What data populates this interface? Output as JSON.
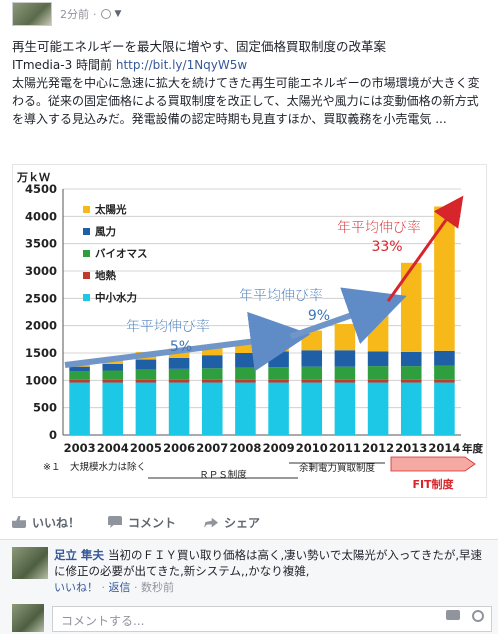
{
  "post": {
    "time": "2分前",
    "title": "再生可能エネルギーを最大限に増やす、固定価格買取制度の改革案",
    "source_name": "ITmedia-3 時間前",
    "source_link": "http://bit.ly/1NqyW5w",
    "description": "太陽光発電を中心に急速に拡大を続けてきた再生可能エネルギーの市場環境が大きく変わる。従来の固定価格による買取制度を改正して、太陽光や風力には変動価格の新方式を導入する見込みだ。発電設備の認定時期も見直すほか、買取義務を小売電気 ..."
  },
  "actions": {
    "like": "いいね！",
    "comment": "コメント",
    "share": "シェア"
  },
  "comment": {
    "author": "足立 隼夫",
    "text": "当初のＦＩＹ買い取り価格は高く,凄い勢いで太陽光が入ってきたが,早速に修正の必要が出てきた,新システム,,かなり複雑,",
    "like": "いいね！",
    "reply": "返信",
    "time": "数秒前"
  },
  "composer": {
    "placeholder": "コメントする..."
  },
  "chart_data": {
    "type": "bar",
    "stacked": true,
    "ylabel": "万ｋＷ",
    "ylim": [
      0,
      4500
    ],
    "yticks": [
      0,
      500,
      1000,
      1500,
      2000,
      2500,
      3000,
      3500,
      4000,
      4500
    ],
    "categories": [
      "2003",
      "2004",
      "2005",
      "2006",
      "2007",
      "2008",
      "2009",
      "2010",
      "2011",
      "2012",
      "2013",
      "2014"
    ],
    "x_unit": "年度",
    "series": [
      {
        "name": "中小水力",
        "color": "#1cc8e6",
        "values": [
          960,
          960,
          960,
          960,
          960,
          960,
          960,
          960,
          960,
          960,
          960,
          960
        ]
      },
      {
        "name": "地熱",
        "color": "#c0392b",
        "values": [
          50,
          50,
          50,
          50,
          50,
          50,
          50,
          50,
          50,
          50,
          50,
          50
        ]
      },
      {
        "name": "バイオマス",
        "color": "#2e9e3e",
        "values": [
          160,
          170,
          190,
          200,
          210,
          220,
          230,
          240,
          240,
          250,
          250,
          260
        ]
      },
      {
        "name": "風力",
        "color": "#1f5fa6",
        "values": [
          80,
          120,
          180,
          200,
          240,
          270,
          290,
          300,
          300,
          270,
          260,
          270
        ]
      },
      {
        "name": "太陽光",
        "color": "#f7b81a",
        "values": [
          90,
          110,
          140,
          170,
          190,
          210,
          260,
          360,
          480,
          700,
          1630,
          2640
        ]
      }
    ],
    "annotations": [
      {
        "text": "年平均伸び率",
        "value": "5%",
        "color": "#3d74b6"
      },
      {
        "text": "年平均伸び率",
        "value": "9%",
        "color": "#3d74b6"
      },
      {
        "text": "年平均伸び率",
        "value": "33%",
        "color": "#d6262b"
      }
    ],
    "footnote": "※１　大規模水力は除く",
    "periods": [
      "ＲＰＳ制度",
      "余剰電力買取制度",
      "FIT制度"
    ]
  }
}
